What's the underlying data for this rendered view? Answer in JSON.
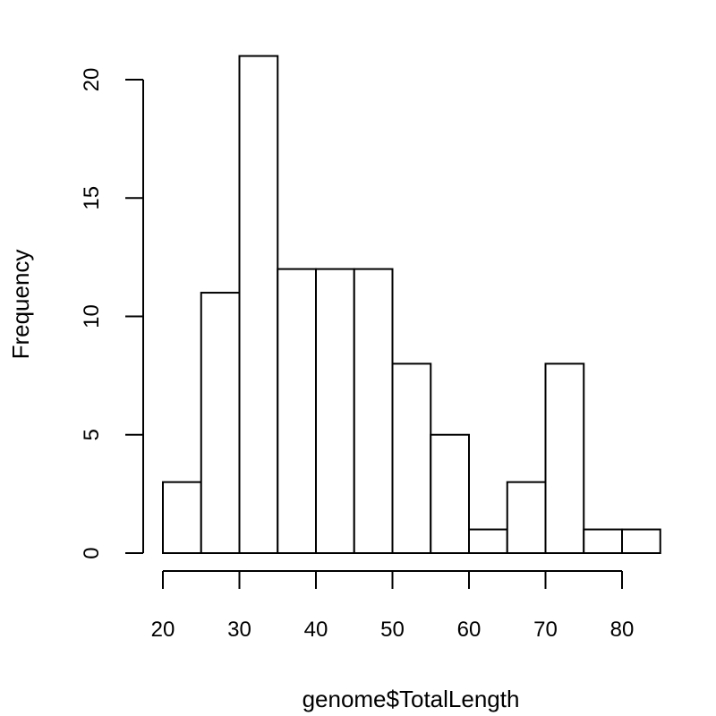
{
  "chart_data": {
    "type": "bar",
    "title": "",
    "xlabel": "genome$TotalLength",
    "ylabel": "Frequency",
    "bins": [
      {
        "start": 20,
        "end": 25,
        "count": 3
      },
      {
        "start": 25,
        "end": 30,
        "count": 11
      },
      {
        "start": 30,
        "end": 35,
        "count": 21
      },
      {
        "start": 35,
        "end": 40,
        "count": 12
      },
      {
        "start": 40,
        "end": 45,
        "count": 12
      },
      {
        "start": 45,
        "end": 50,
        "count": 12
      },
      {
        "start": 50,
        "end": 55,
        "count": 8
      },
      {
        "start": 55,
        "end": 60,
        "count": 5
      },
      {
        "start": 60,
        "end": 65,
        "count": 1
      },
      {
        "start": 65,
        "end": 70,
        "count": 3
      },
      {
        "start": 70,
        "end": 75,
        "count": 8
      },
      {
        "start": 75,
        "end": 80,
        "count": 1
      },
      {
        "start": 80,
        "end": 85,
        "count": 1
      }
    ],
    "xticks": [
      20,
      30,
      40,
      50,
      60,
      70,
      80
    ],
    "yticks": [
      0,
      5,
      10,
      15,
      20
    ],
    "xlim": [
      20,
      80
    ],
    "ylim": [
      0,
      20
    ],
    "grid": false,
    "bar_fill": "#ffffff",
    "bar_stroke": "#000000"
  }
}
